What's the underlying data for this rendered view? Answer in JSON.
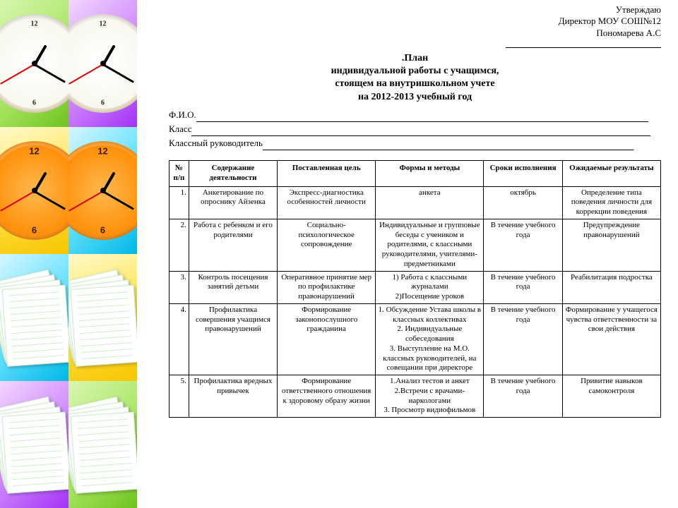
{
  "approval": {
    "l1": "Утверждаю",
    "l2": "Директор МОУ СОШ№12",
    "l3": "Пономарева А.С"
  },
  "title": {
    "l1": ".План",
    "l2": "индивидуальной работы с учащимся,",
    "l3": "стоящем на внутришкольном учете",
    "l4": "на 2012-2013 учебный год"
  },
  "fields": {
    "f1": "Ф.И.О.",
    "f2": "Класс",
    "f3": "Классный руководитель"
  },
  "table": {
    "columns": [
      "№ п/п",
      "Содержание деятельности",
      "Поставленная цель",
      "Формы и методы",
      "Сроки исполнения",
      "Ожидаемые результаты"
    ],
    "rows": [
      [
        "1.",
        "Анкетирование по опроснику Айзенка",
        "Экспресс-диагностика особенностей личности",
        "анкета",
        "октябрь",
        "Определение типа поведения личности для коррекции поведения"
      ],
      [
        "2.",
        "Работа с ребенком и его родителями",
        "Социально-психологическое сопровождение",
        "Индивидуальные и групповые беседы с учеником и родителями, с классными руководителями, учителями-предметниками",
        "В течение учебного года",
        "Предупреждение правонарушений"
      ],
      [
        "3.",
        "Контроль посещения занятий детьми",
        "Оперативное принятие мер по профилактике правонарушений",
        "1) Работа с классными журналами\n2)Посещение уроков",
        "В течение учебного года",
        "Реабилитация подростка"
      ],
      [
        "4.",
        "Профилактика совершения учащимся правонарушений",
        "Формирование законопослушного гражданина",
        "1. Обсуждение Устава школы в классных коллективах\n2. Индивидуальные собеседования\n3. Выступление на М.О. классных руководителей, на совещании при директоре",
        "В течение учебного года",
        "Формирование у учащегося чувства ответственности за свои действия"
      ],
      [
        "5.",
        "Профилактика вредных привычек",
        "Формирование ответственного отношения к здоровому образу жизни",
        "1.Анализ тестов и анкет\n2.Встречи с врачами-наркологами\n3. Просмотр видиофильмов",
        "В течение учебного года",
        "Привитие навыков самоконтроля"
      ]
    ],
    "col_align": [
      "right",
      "center",
      "center",
      "center",
      "center",
      "center"
    ]
  },
  "collage": {
    "tiles": [
      {
        "pos": "0,0",
        "color": "t-green",
        "motif": "clock"
      },
      {
        "pos": "1,0",
        "color": "t-purple",
        "motif": "clock"
      },
      {
        "pos": "0,1",
        "color": "t-yellow",
        "motif": "clock-orange"
      },
      {
        "pos": "1,1",
        "color": "t-cyan",
        "motif": "clock-orange"
      },
      {
        "pos": "0,2",
        "color": "t-cyan",
        "motif": "papers"
      },
      {
        "pos": "1,2",
        "color": "t-yellow",
        "motif": "papers"
      },
      {
        "pos": "0,3",
        "color": "t-purple",
        "motif": "papers"
      },
      {
        "pos": "1,3",
        "color": "t-green",
        "motif": "papers"
      }
    ]
  }
}
